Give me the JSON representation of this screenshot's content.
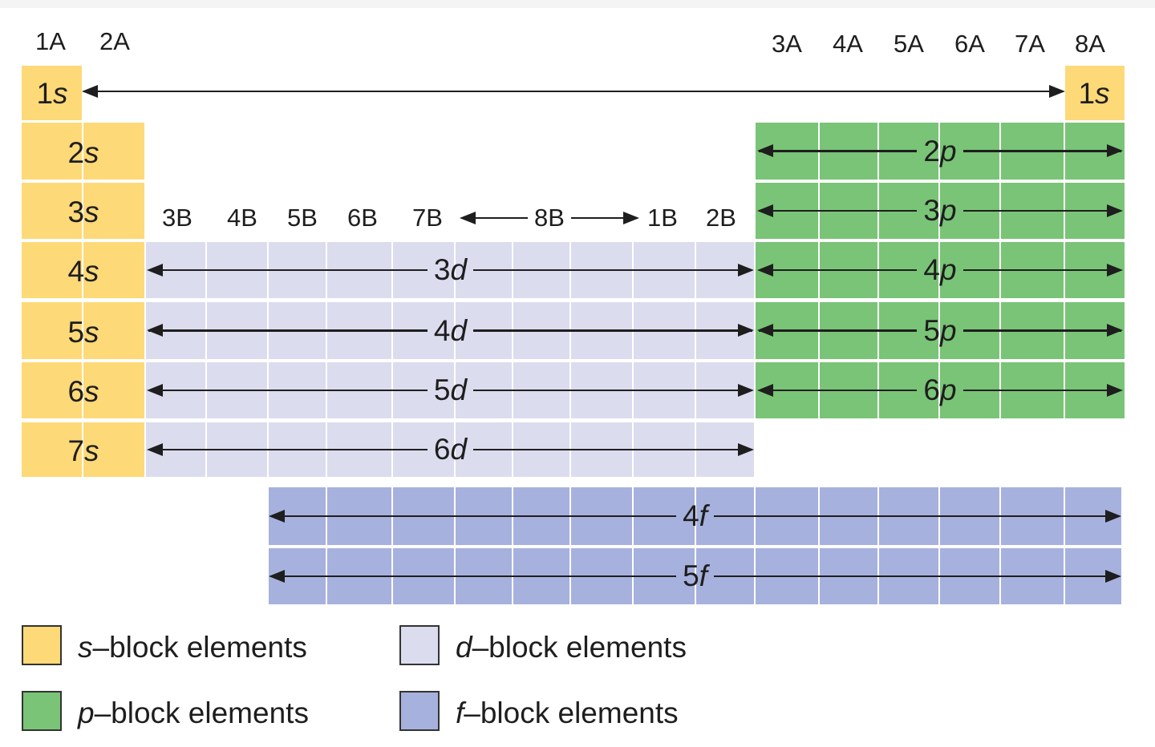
{
  "colors": {
    "s": "#FDD977",
    "p": "#79C476",
    "d": "#DBDCEE",
    "f": "#A7B1DD"
  },
  "groups_a": [
    "1A",
    "2A",
    "3A",
    "4A",
    "5A",
    "6A",
    "7A",
    "8A"
  ],
  "groups_b": [
    "3B",
    "4B",
    "5B",
    "6B",
    "7B",
    "8B",
    "1B",
    "2B"
  ],
  "s_rows": [
    {
      "n": "1",
      "l": "s"
    },
    {
      "n": "2",
      "l": "s"
    },
    {
      "n": "3",
      "l": "s"
    },
    {
      "n": "4",
      "l": "s"
    },
    {
      "n": "5",
      "l": "s"
    },
    {
      "n": "6",
      "l": "s"
    },
    {
      "n": "7",
      "l": "s"
    }
  ],
  "s_right": {
    "n": "1",
    "l": "s"
  },
  "p_rows": [
    {
      "n": "2",
      "l": "p"
    },
    {
      "n": "3",
      "l": "p"
    },
    {
      "n": "4",
      "l": "p"
    },
    {
      "n": "5",
      "l": "p"
    },
    {
      "n": "6",
      "l": "p"
    }
  ],
  "d_rows": [
    {
      "n": "3",
      "l": "d"
    },
    {
      "n": "4",
      "l": "d"
    },
    {
      "n": "5",
      "l": "d"
    },
    {
      "n": "6",
      "l": "d"
    }
  ],
  "f_rows": [
    {
      "n": "4",
      "l": "f"
    },
    {
      "n": "5",
      "l": "f"
    }
  ],
  "legend": [
    {
      "key": "s",
      "l": "s",
      "text": "–block elements"
    },
    {
      "key": "d",
      "l": "d",
      "text": "–block elements"
    },
    {
      "key": "p",
      "l": "p",
      "text": "–block elements"
    },
    {
      "key": "f",
      "l": "f",
      "text": "–block elements"
    }
  ]
}
